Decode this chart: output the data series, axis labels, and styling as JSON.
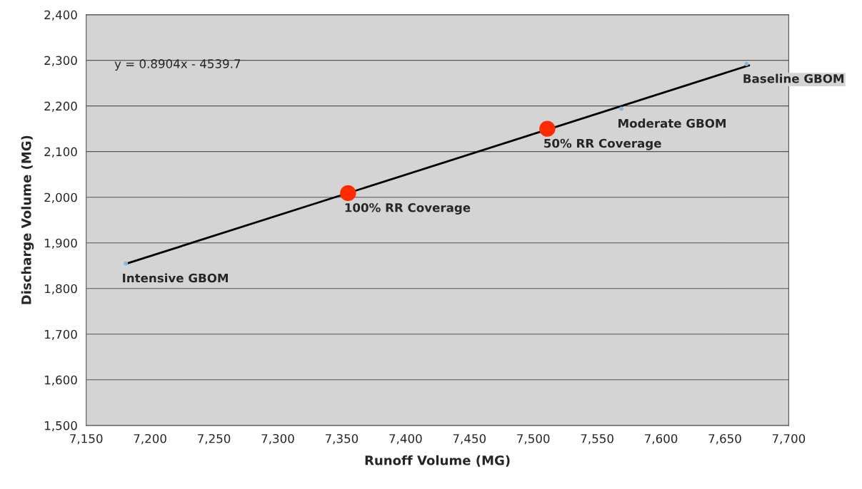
{
  "chart_data": {
    "type": "scatter",
    "xlabel": "Runoff Volume (MG)",
    "ylabel": "Discharge Volume (MG)",
    "series": [
      {
        "type": "line",
        "color": "#000000",
        "x": [
          7181,
          7669
        ],
        "values": [
          1854,
          2289
        ],
        "marker": "none"
      },
      {
        "color": "#8ab8dc",
        "x": [
          7181,
          7569,
          7667
        ],
        "values": [
          1855,
          2194,
          2292
        ],
        "marker": "circle"
      },
      {
        "color": "#ff2a00",
        "x": [
          7355,
          7511
        ],
        "values": [
          2009,
          2150
        ],
        "marker": "circle"
      }
    ],
    "annotations": [
      "y = 0.8904x - 4539.7",
      {
        "text": "Intensive GBOM",
        "x": 7181,
        "y": 1855
      },
      {
        "text": "100% RR Coverage",
        "x": 7355,
        "y": 2009
      },
      {
        "text": "50% RR Coverage",
        "x": 7511,
        "y": 2150
      },
      {
        "text": "Moderate GBOM",
        "x": 7569,
        "y": 2194
      },
      {
        "text": "Baseline GBOM",
        "x": 7667,
        "y": 2292
      }
    ],
    "xlim": [
      7150,
      7700
    ],
    "xticks": [
      {
        "value": 7150,
        "label": "7,150"
      },
      {
        "value": 7200,
        "label": "7,200"
      },
      {
        "value": 7250,
        "label": "7,250"
      },
      {
        "value": 7300,
        "label": "7,300"
      },
      {
        "value": 7350,
        "label": "7,350"
      },
      {
        "value": 7400,
        "label": "7,400"
      },
      {
        "value": 7450,
        "label": "7,450"
      },
      {
        "value": 7500,
        "label": "7,500"
      },
      {
        "value": 7550,
        "label": "7,550"
      },
      {
        "value": 7600,
        "label": "7,600"
      },
      {
        "value": 7650,
        "label": "7,650"
      },
      {
        "value": 7700,
        "label": "7,700"
      }
    ],
    "ylim": [
      1500,
      2400
    ],
    "yticks": [
      {
        "value": 1500,
        "label": "1,500"
      },
      {
        "value": 1600,
        "label": "1,600"
      },
      {
        "value": 1700,
        "label": "1,700"
      },
      {
        "value": 1800,
        "label": "1,800"
      },
      {
        "value": 1900,
        "label": "1,900"
      },
      {
        "value": 2000,
        "label": "2,000"
      },
      {
        "value": 2100,
        "label": "2,100"
      },
      {
        "value": 2200,
        "label": "2,200"
      },
      {
        "value": 2300,
        "label": "2,300"
      },
      {
        "value": 2400,
        "label": "2,400"
      }
    ],
    "grid": "y",
    "legend": false
  }
}
